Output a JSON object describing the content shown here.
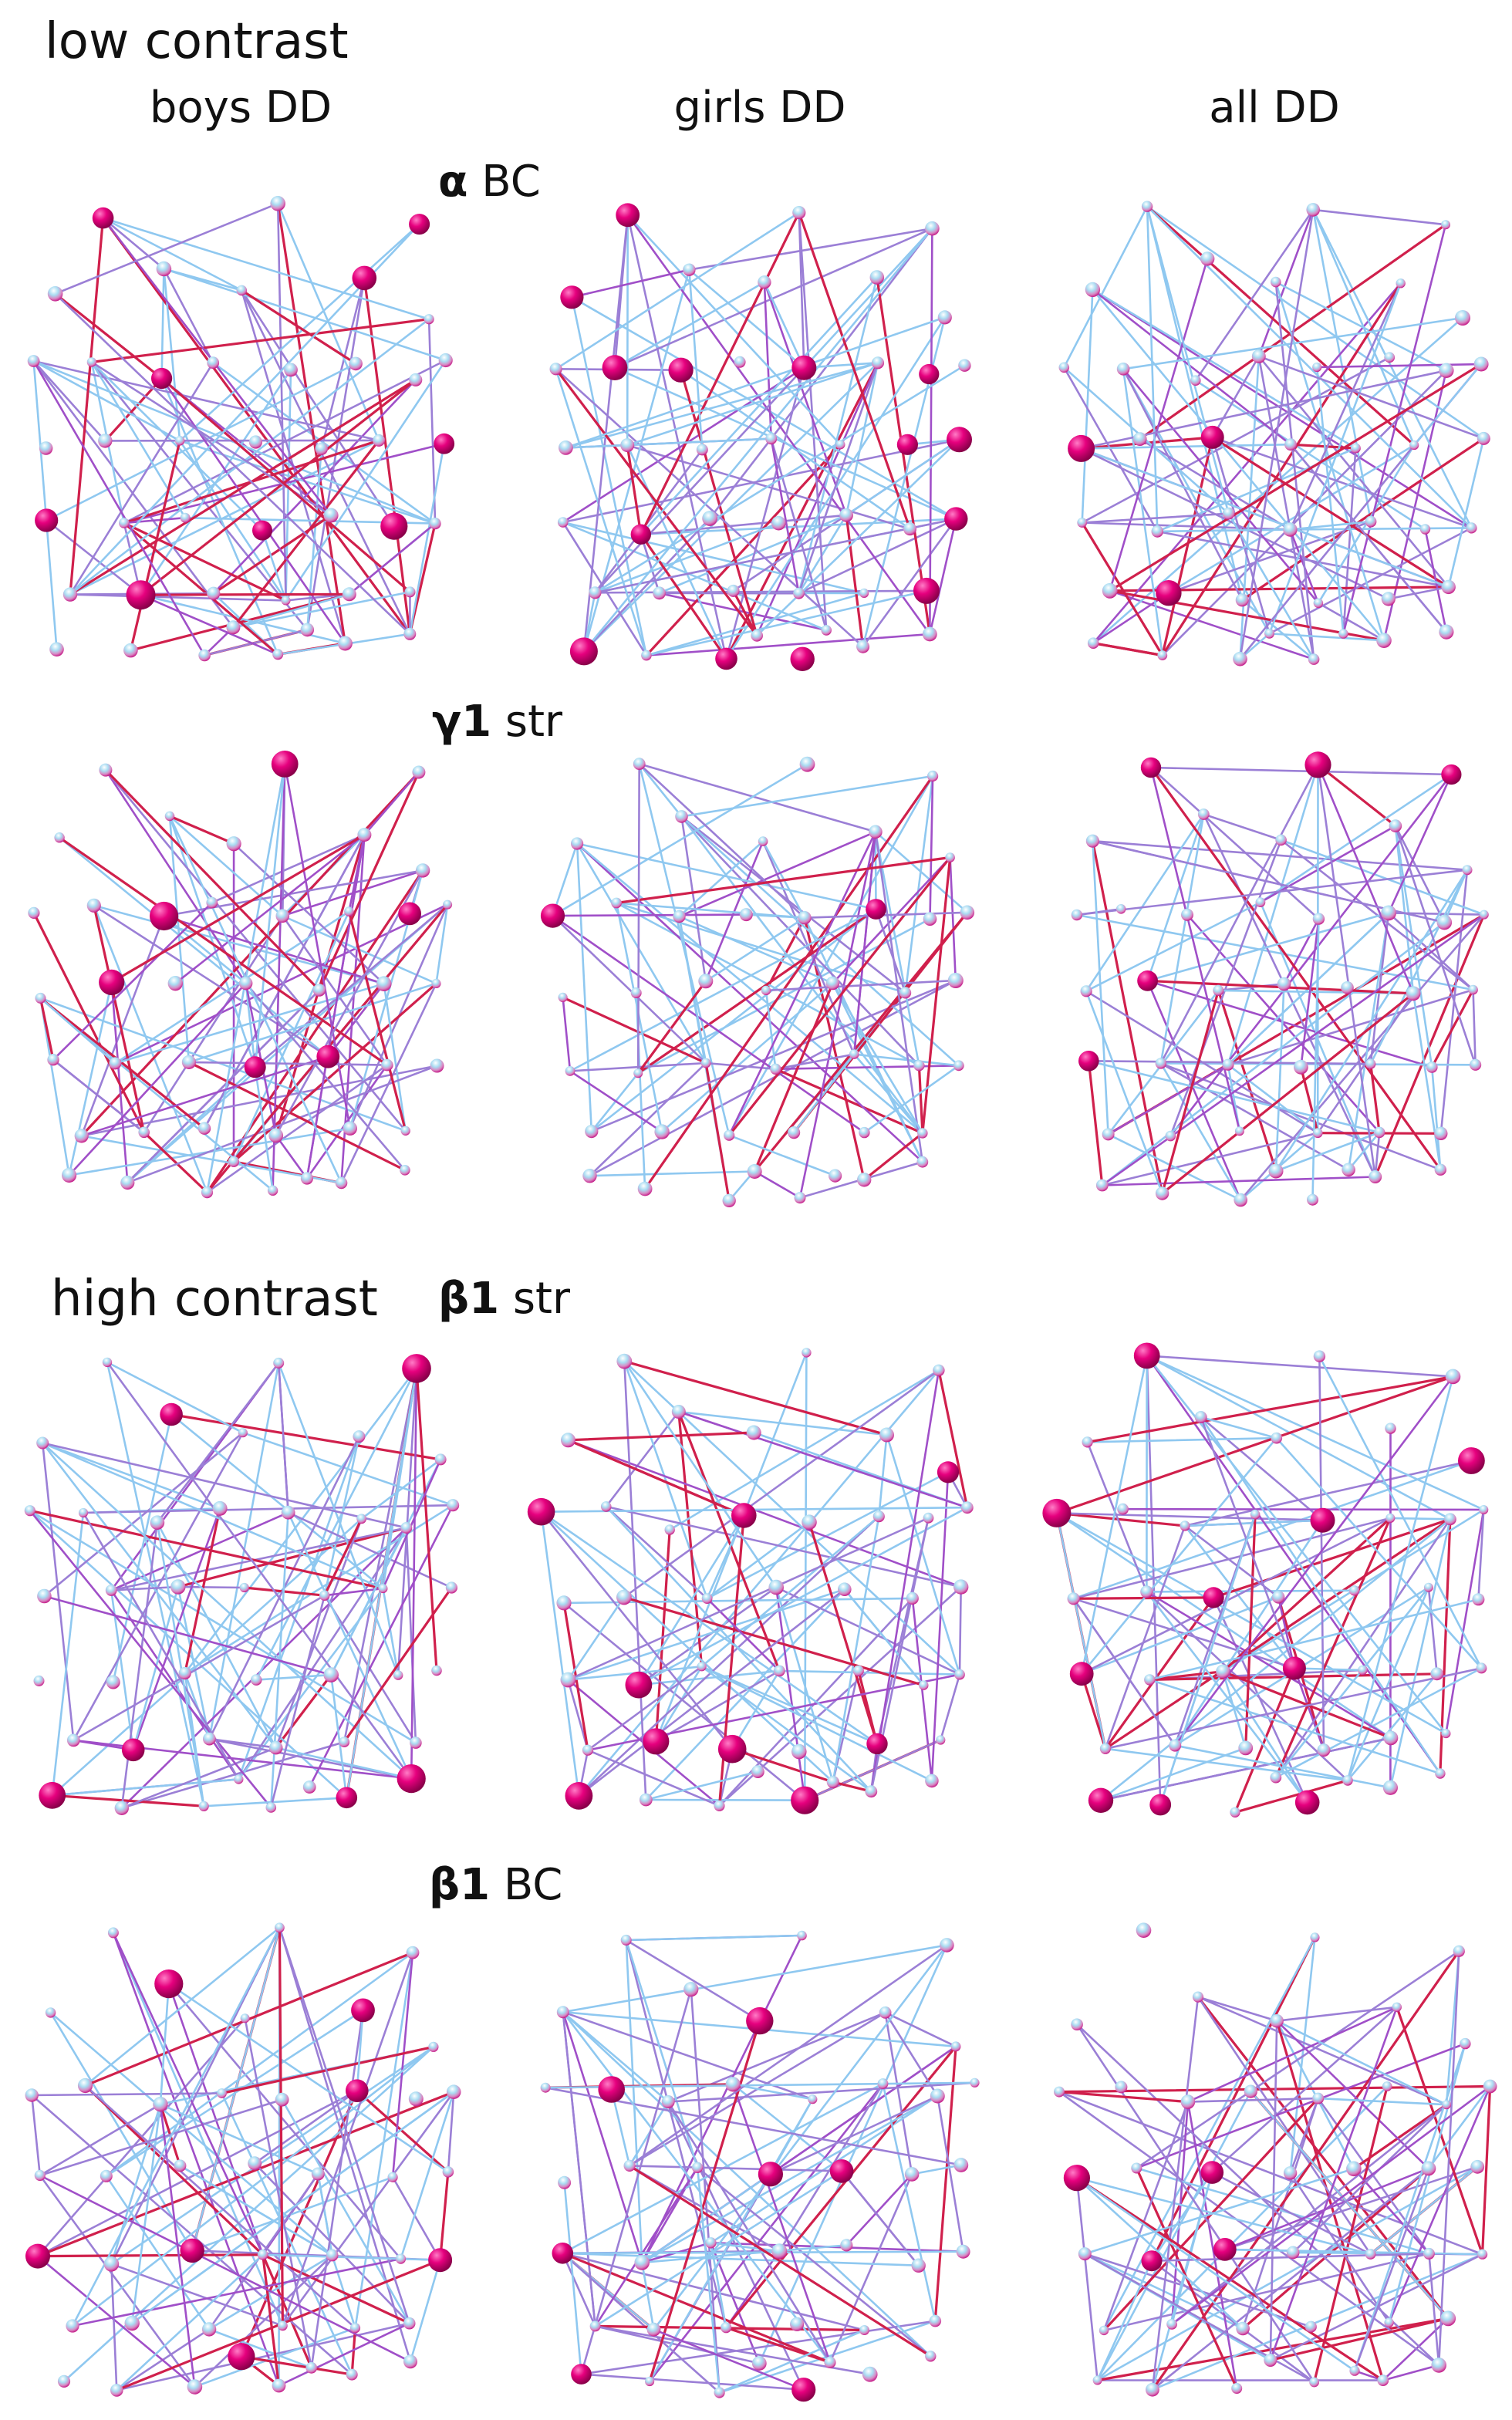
{
  "sections": [
    {
      "title": "low contrast"
    },
    {
      "title": "high contrast"
    }
  ],
  "columns": [
    {
      "label": "boys DD"
    },
    {
      "label": "girls DD"
    },
    {
      "label": "all DD"
    }
  ],
  "rows": [
    {
      "greek": "α",
      "measure": "BC"
    },
    {
      "greek": "γ1",
      "measure": "str"
    },
    {
      "greek": "β1",
      "measure": "str"
    },
    {
      "greek": "β1",
      "measure": "BC"
    }
  ],
  "colors": {
    "node_magenta": "#e6007e",
    "node_light_blue": "#9fd9f2",
    "edge_light_blue": "#8fc8f0",
    "edge_blue_violet": "#9b7fd6",
    "edge_violet": "#a04fc8",
    "edge_red": "#d0204c"
  }
}
